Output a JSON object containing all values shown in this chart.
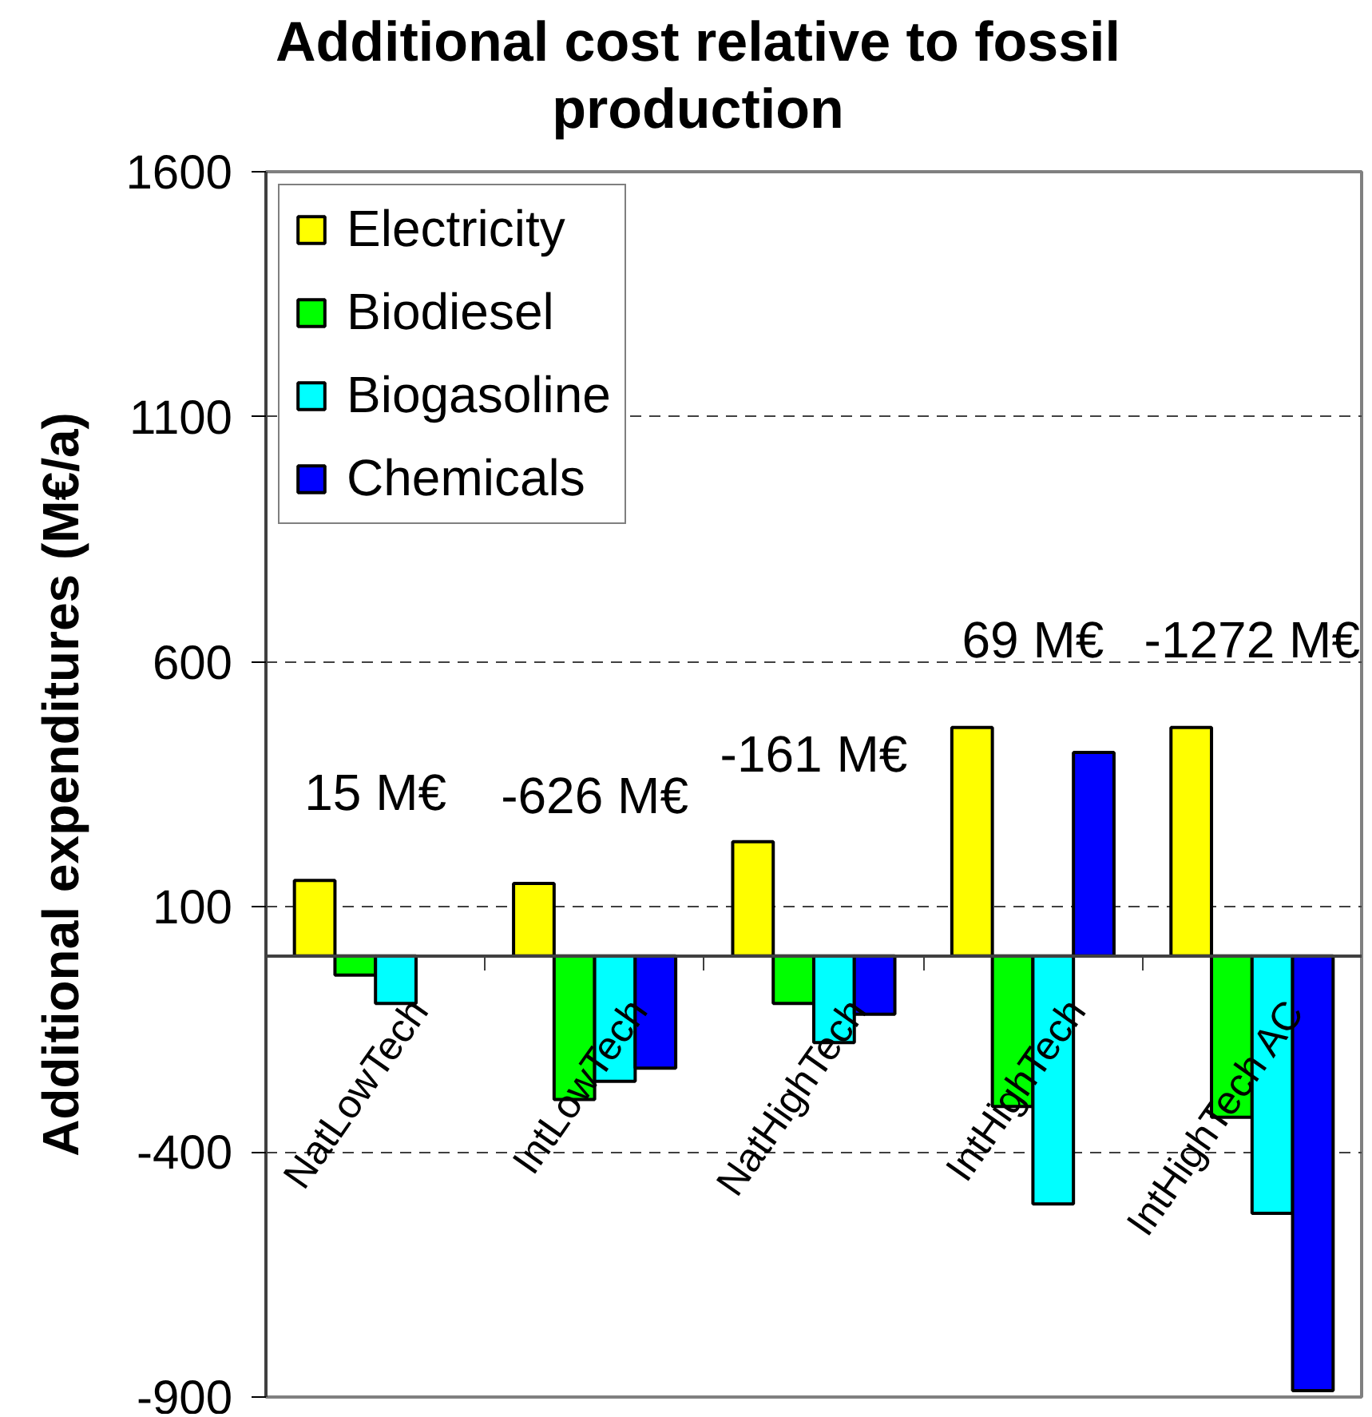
{
  "chart_data": {
    "type": "bar",
    "title": "Additional cost relative to fossil production",
    "ylabel": "Additional expenditures (M€/a)",
    "categories": [
      "NatLowTech",
      "IntLowTech",
      "NatHighTech",
      "IntHighTech",
      "IntHighTech AC"
    ],
    "series": [
      {
        "name": "Electricity",
        "color": "#ffff00",
        "values": [
          154,
          148,
          233,
          466,
          466
        ]
      },
      {
        "name": "Biodiesel",
        "color": "#00ff00",
        "values": [
          -39,
          -293,
          -97,
          -307,
          -329
        ]
      },
      {
        "name": "Biogasoline",
        "color": "#00ffff",
        "values": [
          -97,
          -256,
          -177,
          -506,
          -525
        ]
      },
      {
        "name": "Chemicals",
        "color": "#0000ff",
        "values": [
          null,
          -229,
          -119,
          415,
          -887
        ]
      }
    ],
    "ylim": [
      -900,
      1600
    ],
    "yticks": [
      -900,
      -400,
      100,
      600,
      1100,
      1600
    ],
    "grid": "y",
    "legend": "top left",
    "annotations": [
      "15 M€",
      "-626 M€",
      "-161 M€",
      "69 M€",
      "-1272 M€"
    ]
  }
}
